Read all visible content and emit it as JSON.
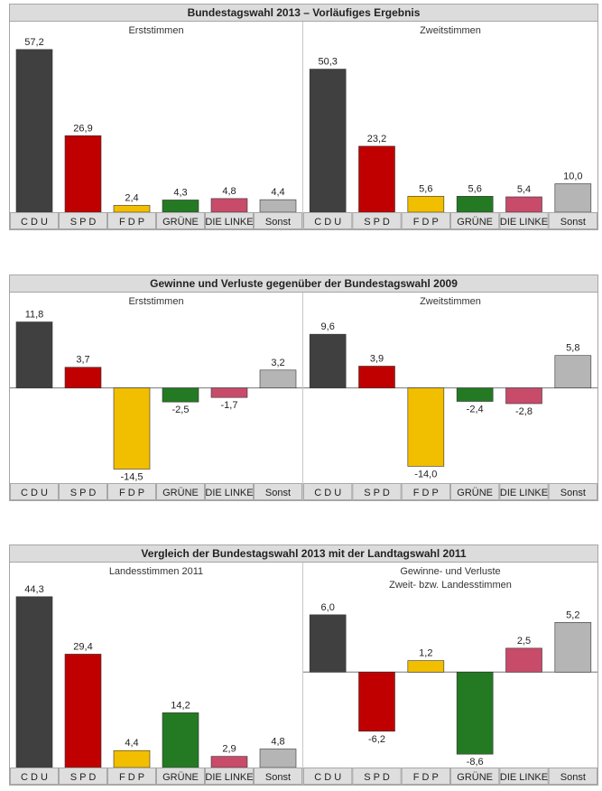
{
  "party_colors": [
    "#404040",
    "#c00000",
    "#f2be00",
    "#237a23",
    "#c84b6a",
    "#b5b5b5"
  ],
  "blocks": [
    {
      "title": "Bundestagswahl 2013 – Vorläufiges Ergebnis",
      "panels": [
        {
          "subtitle_lines": [
            "Erststimmen"
          ],
          "chart_data": {
            "type": "bar",
            "categories": [
              "C D U",
              "S P D",
              "F D P",
              "GRÜNE",
              "DIE LINKE",
              "Sonst"
            ],
            "values": [
              57.2,
              26.9,
              2.4,
              4.3,
              4.8,
              4.4
            ],
            "value_labels": [
              "57,2",
              "26,9",
              "2,4",
              "4,3",
              "4,8",
              "4,4"
            ],
            "ylim": [
              0,
              60
            ]
          }
        },
        {
          "subtitle_lines": [
            "Zweitstimmen"
          ],
          "chart_data": {
            "type": "bar",
            "categories": [
              "C D U",
              "S P D",
              "F D P",
              "GRÜNE",
              "DIE LINKE",
              "Sonst"
            ],
            "values": [
              50.3,
              23.2,
              5.6,
              5.6,
              5.4,
              10.0
            ],
            "value_labels": [
              "50,3",
              "23,2",
              "5,6",
              "5,6",
              "5,4",
              "10,0"
            ],
            "ylim": [
              0,
              60
            ]
          }
        }
      ]
    },
    {
      "title": "Gewinne und Verluste gegenüber der Bundestagswahl 2009",
      "panels": [
        {
          "subtitle_lines": [
            "Erststimmen"
          ],
          "chart_data": {
            "type": "bar",
            "categories": [
              "C D U",
              "S P D",
              "F D P",
              "GRÜNE",
              "DIE LINKE",
              "Sonst"
            ],
            "values": [
              11.8,
              3.7,
              -14.5,
              -2.5,
              -1.7,
              3.2
            ],
            "value_labels": [
              "11,8",
              "3,7",
              "-14,5",
              "-2,5",
              "-1,7",
              "3,2"
            ],
            "ylim": [
              -17,
              13.5
            ]
          }
        },
        {
          "subtitle_lines": [
            "Zweitstimmen"
          ],
          "chart_data": {
            "type": "bar",
            "categories": [
              "C D U",
              "S P D",
              "F D P",
              "GRÜNE",
              "DIE LINKE",
              "Sonst"
            ],
            "values": [
              9.6,
              3.9,
              -14.0,
              -2.4,
              -2.8,
              5.8
            ],
            "value_labels": [
              "9,6",
              "3,9",
              "-14,0",
              "-2,4",
              "-2,8",
              "5,8"
            ],
            "ylim": [
              -17,
              13.5
            ]
          }
        }
      ]
    },
    {
      "title": "Vergleich der Bundestagswahl 2013 mit der Landtagswahl 2011",
      "panels": [
        {
          "subtitle_lines": [
            "Landesstimmen 2011"
          ],
          "chart_data": {
            "type": "bar",
            "categories": [
              "C D U",
              "S P D",
              "F D P",
              "GRÜNE",
              "DIE LINKE",
              "Sonst"
            ],
            "values": [
              44.3,
              29.4,
              4.4,
              14.2,
              2.9,
              4.8
            ],
            "value_labels": [
              "44,3",
              "29,4",
              "4,4",
              "14,2",
              "2,9",
              "4,8"
            ],
            "ylim": [
              0,
              48
            ]
          }
        },
        {
          "subtitle_lines": [
            "Gewinne- und Verluste",
            "Zweit- bzw. Landesstimmen"
          ],
          "chart_data": {
            "type": "bar",
            "categories": [
              "C D U",
              "S P D",
              "F D P",
              "GRÜNE",
              "DIE LINKE",
              "Sonst"
            ],
            "values": [
              6.0,
              -6.2,
              1.2,
              -8.6,
              2.5,
              5.2
            ],
            "value_labels": [
              "6,0",
              "-6,2",
              "1,2",
              "-8,6",
              "2,5",
              "5,2"
            ],
            "ylim": [
              -10,
              7.5
            ]
          }
        }
      ]
    }
  ]
}
